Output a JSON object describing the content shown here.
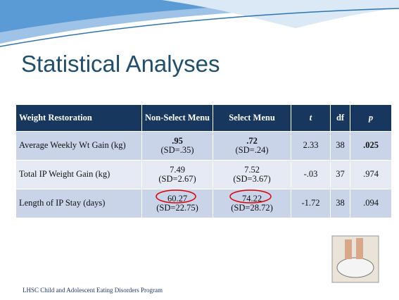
{
  "title": "Statistical Analyses",
  "table": {
    "header": [
      "Weight Restoration",
      "Non-Select Menu",
      "Select Menu",
      "t",
      "df",
      "p"
    ],
    "rows": [
      [
        "Average Weekly Wt Gain (kg)",
        {
          "value": ".95",
          "sd": "(SD=.35)"
        },
        {
          "value": ".72",
          "sd": "(SD=.24)"
        },
        "2.33",
        "38",
        ".025"
      ],
      [
        "Total IP Weight Gain (kg)",
        {
          "value": "7.49",
          "sd": "(SD=2.67)"
        },
        {
          "value": "7.52",
          "sd": "(SD=3.67)"
        },
        "-.03",
        "37",
        ".974"
      ],
      [
        "Length of IP Stay (days)",
        {
          "value": "60.27",
          "sd": "(SD=22.75)"
        },
        {
          "value": "74.22",
          "sd": "(SD=28.72)"
        },
        "-1.72",
        "38",
        ".094"
      ]
    ]
  },
  "footer": "LHSC Child and Adolescent Eating Disorders Program"
}
